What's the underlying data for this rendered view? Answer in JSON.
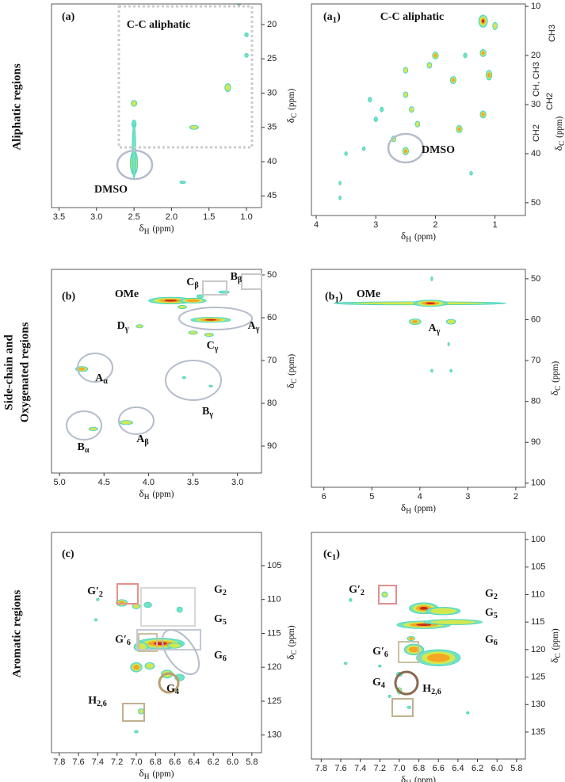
{
  "row_labels": [
    {
      "lines": [
        "Aliphatic regions"
      ]
    },
    {
      "lines": [
        "Side-chain and",
        "Oxygenated regions"
      ]
    },
    {
      "lines": [
        "Aromatic regions"
      ]
    }
  ],
  "levels_colors": [
    "#6fe3c6",
    "#d4e84e",
    "#f5a623",
    "#c62a1c"
  ],
  "chart_data": [
    {
      "type": "contour",
      "panel": {
        "text": "(a)"
      },
      "xlabel": {
        "symbol": "δ",
        "sub": "H",
        "unit": "(ppm)"
      },
      "ylabel": {
        "symbol": "δ",
        "sub": "C",
        "unit": "(ppm)"
      },
      "annotations": [
        {
          "text": "C-C aliphatic"
        },
        {
          "text": "DMSO"
        }
      ],
      "xlim": [
        3.6,
        0.8
      ],
      "ylim": [
        17,
        46.7
      ],
      "xticks": [
        3.5,
        {
          "value": 3.0,
          "label": "3.0"
        },
        2.5,
        {
          "value": 2.0,
          "label": "2.0"
        },
        1.5,
        {
          "value": 1.0,
          "label": "1.0"
        }
      ],
      "yticks": [
        20,
        25,
        30,
        35,
        40,
        45
      ],
      "peaks": {
        "x": [
          2.5,
          2.5,
          2.5,
          2.5,
          1.7,
          1.25,
          1.1,
          1.0,
          1.0,
          1.85
        ],
        "y": [
          31.5,
          34.5,
          40.2,
          38.5,
          35,
          29.2,
          16.8,
          21.5,
          24.5,
          43
        ],
        "w": [
          0.08,
          0.06,
          0.1,
          0.05,
          0.12,
          0.08,
          0.06,
          0.05,
          0.05,
          0.08
        ],
        "h": [
          0.9,
          1.2,
          3.5,
          8,
          0.6,
          1.2,
          0.8,
          0.6,
          0.6,
          0.4
        ],
        "level": [
          2,
          1,
          4,
          1,
          2,
          2,
          1,
          1,
          1,
          1
        ]
      }
    },
    {
      "type": "contour",
      "panel": {
        "text": "(a",
        "sub": "1",
        "after": ")"
      },
      "xlabel": {
        "symbol": "δ",
        "sub": "H",
        "unit": "(ppm)"
      },
      "ylabel": {
        "symbol": "δ",
        "sub": "C",
        "unit": "(ppm)"
      },
      "annotations": [
        {
          "text": "C-C aliphatic"
        },
        {
          "text": "DMSO"
        }
      ],
      "side_labels": [
        "CH3",
        "CH, CH3",
        "CH2",
        "CH2"
      ],
      "xlim": [
        4.08,
        0.49
      ],
      "ylim": [
        9.5,
        52.6
      ],
      "xticks": [
        4,
        3,
        2,
        1
      ],
      "yticks": [
        10,
        20,
        30,
        40,
        50
      ],
      "peaks": {
        "x": [
          1.2,
          1.2,
          1.1,
          1.0,
          2.0,
          2.1,
          1.5,
          2.5,
          1.7,
          2.5,
          2.4,
          1.2,
          3.0,
          2.9,
          3.1,
          2.3,
          1.6,
          2.7,
          2.5,
          3.2,
          3.5,
          3.6,
          3.6,
          1.4
        ],
        "y": [
          13,
          19.5,
          24,
          14,
          20,
          22,
          20,
          23,
          25,
          28,
          31,
          32,
          33,
          31,
          29,
          34,
          35,
          37,
          39.5,
          39,
          40,
          46,
          49,
          44
        ],
        "w": [
          0.15,
          0.1,
          0.1,
          0.08,
          0.1,
          0.08,
          0.06,
          0.08,
          0.1,
          0.08,
          0.08,
          0.1,
          0.06,
          0.06,
          0.06,
          0.08,
          0.1,
          0.08,
          0.1,
          0.05,
          0.05,
          0.04,
          0.04,
          0.05
        ],
        "h": [
          2.5,
          1.5,
          2,
          1.5,
          1.5,
          1.2,
          1,
          1.2,
          1.5,
          1.2,
          1.2,
          1.5,
          1,
          1,
          1,
          1.2,
          1.5,
          1.2,
          1.6,
          0.8,
          0.8,
          0.8,
          0.8,
          0.8
        ],
        "level": [
          4,
          3,
          3,
          2,
          3,
          2,
          1,
          2,
          3,
          2,
          2,
          3,
          1,
          1,
          1,
          2,
          3,
          2,
          3,
          1,
          1,
          1,
          1,
          1
        ]
      }
    },
    {
      "type": "contour",
      "panel": {
        "text": "(b)"
      },
      "xlabel": {
        "symbol": "δ",
        "sub": "H",
        "unit": "(ppm)"
      },
      "ylabel": {
        "symbol": "δ",
        "sub": "C",
        "unit": "(ppm)"
      },
      "annotations": [
        {
          "text": "OMe"
        },
        {
          "text": "C",
          "sub": "β"
        },
        {
          "text": "B",
          "sub": "β"
        },
        {
          "text": "D",
          "sub": "γ"
        },
        {
          "text": "A",
          "sub": "γ"
        },
        {
          "text": "C",
          "sub": "γ"
        },
        {
          "text": "A",
          "sub": "α"
        },
        {
          "text": "B",
          "sub": "γ"
        },
        {
          "text": "B",
          "sub": "α"
        },
        {
          "text": "A",
          "sub": "β"
        }
      ],
      "xlim": [
        5.09,
        2.73
      ],
      "ylim": [
        48.7,
        96.3
      ],
      "xticks": [
        {
          "value": 5.0,
          "label": "5.0"
        },
        4.5,
        {
          "value": 4.0,
          "label": "4.0"
        },
        3.5,
        {
          "value": 3.0,
          "label": "3.0"
        }
      ],
      "yticks": [
        50,
        60,
        70,
        80,
        90
      ],
      "peaks": {
        "x": [
          3.75,
          3.5,
          3.3,
          3.15,
          3.42,
          4.1,
          3.5,
          3.32,
          4.75,
          4.62,
          4.25,
          3.6,
          3.3,
          3.62
        ],
        "y": [
          56,
          56,
          60.5,
          54,
          55,
          62,
          63.5,
          64,
          72,
          86,
          84.5,
          74,
          76,
          57.5
        ],
        "w": [
          0.5,
          0.3,
          0.45,
          0.12,
          0.08,
          0.08,
          0.1,
          0.1,
          0.14,
          0.1,
          0.15,
          0.04,
          0.04,
          0.1
        ],
        "h": [
          1.6,
          1.2,
          1.2,
          0.6,
          0.8,
          0.8,
          0.8,
          0.8,
          1.2,
          0.8,
          1,
          0.5,
          0.5,
          0.8
        ],
        "level": [
          4,
          3,
          4,
          1,
          1,
          2,
          2,
          2,
          3,
          2,
          2,
          1,
          1,
          2
        ]
      }
    },
    {
      "type": "contour",
      "panel": {
        "text": "(b",
        "sub": "1",
        "after": ")"
      },
      "xlabel": {
        "symbol": "δ",
        "sub": "H",
        "unit": "(ppm)"
      },
      "ylabel": {
        "symbol": "δ",
        "sub": "C",
        "unit": "(ppm)"
      },
      "annotations": [
        {
          "text": "OMe"
        },
        {
          "text": "A",
          "sub": "γ"
        }
      ],
      "xlim": [
        6.26,
        1.8
      ],
      "ylim": [
        47.7,
        101
      ],
      "xticks": [
        6,
        5,
        4,
        3,
        2
      ],
      "yticks": [
        50,
        60,
        70,
        80,
        90,
        100
      ],
      "peaks": {
        "x": [
          4.0,
          3.78,
          4.1,
          3.35,
          3.75,
          3.4,
          3.75,
          3.35
        ],
        "y": [
          56,
          56,
          60.5,
          60.5,
          50,
          66,
          72.5,
          72.5
        ],
        "w": [
          3.6,
          0.7,
          0.25,
          0.2,
          0.04,
          0.04,
          0.05,
          0.05
        ],
        "h": [
          0.8,
          1.6,
          1.4,
          1.2,
          1,
          0.8,
          0.8,
          0.8
        ],
        "level": [
          2,
          4,
          3,
          2,
          1,
          1,
          1,
          1
        ]
      }
    },
    {
      "type": "contour",
      "panel": {
        "text": "(c)"
      },
      "xlabel": {
        "symbol": "δ",
        "sub": "H",
        "unit": "(ppm)"
      },
      "ylabel": {
        "symbol": "δ",
        "sub": "C",
        "unit": "(ppm)"
      },
      "annotations": [
        {
          "text": "G′",
          "sub": "2",
          "color": "#f0a070"
        },
        {
          "text": "G",
          "sub": "2"
        },
        {
          "text": "G",
          "sub": "5"
        },
        {
          "text": "G′",
          "sub": "6",
          "color": "#c2c88a"
        },
        {
          "text": "G",
          "sub": "6"
        },
        {
          "text": "G",
          "sub": "4",
          "color": "#e07b20"
        },
        {
          "text": "H",
          "sub": "2,6",
          "color": "#9b9070"
        }
      ],
      "xlim": [
        7.88,
        5.7
      ],
      "ylim": [
        100.1,
        132.6
      ],
      "xticks": [
        7.8,
        7.6,
        7.4,
        7.2,
        {
          "value": 7.0,
          "label": "7.0"
        },
        6.8,
        6.6,
        6.4,
        6.2,
        {
          "value": 6.0,
          "label": "6.0"
        },
        5.8
      ],
      "yticks": [
        105,
        110,
        115,
        120,
        125,
        130
      ],
      "peaks": {
        "x": [
          7.15,
          7.0,
          6.88,
          6.75,
          6.95,
          7.0,
          6.86,
          6.68,
          6.55,
          6.95,
          7.4,
          7.42,
          6.55,
          7.0,
          6.6
        ],
        "y": [
          110.5,
          111,
          110.8,
          116.5,
          117,
          120,
          119.8,
          121,
          121.5,
          126.5,
          110,
          113,
          111.5,
          129.5,
          116.8
        ],
        "w": [
          0.12,
          0.08,
          0.08,
          0.5,
          0.15,
          0.12,
          0.1,
          0.12,
          0.1,
          0.06,
          0.03,
          0.03,
          0.06,
          0.04,
          0.15
        ],
        "h": [
          1,
          0.8,
          0.8,
          1.6,
          1.4,
          1.4,
          1,
          1.2,
          1,
          0.8,
          0.4,
          0.4,
          0.8,
          0.4,
          0.8
        ],
        "level": [
          3,
          2,
          1,
          4,
          2,
          3,
          2,
          2,
          1,
          2,
          1,
          1,
          1,
          1,
          2
        ]
      }
    },
    {
      "type": "contour",
      "panel": {
        "text": "(c",
        "sub": "1",
        "after": ")"
      },
      "xlabel": {
        "symbol": "δ",
        "sub": "H",
        "unit": "(ppm)"
      },
      "ylabel": {
        "symbol": "δ",
        "sub": "C",
        "unit": "(ppm)"
      },
      "annotations": [
        {
          "text": "G′",
          "sub": "2",
          "color": "#e39a9a"
        },
        {
          "text": "G",
          "sub": "2"
        },
        {
          "text": "G",
          "sub": "5"
        },
        {
          "text": "G′",
          "sub": "6",
          "color": "#c2c2a0"
        },
        {
          "text": "G",
          "sub": "6"
        },
        {
          "text": "G",
          "sub": "4",
          "color": "#8b3a3a"
        },
        {
          "text": "H",
          "sub": "2,6",
          "color": "#a09070"
        }
      ],
      "xlim": [
        7.9,
        5.71
      ],
      "ylim": [
        98.7,
        139.9
      ],
      "xticks": [
        7.8,
        7.6,
        7.4,
        7.2,
        {
          "value": 7.0,
          "label": "7.0"
        },
        6.8,
        6.6,
        6.4,
        6.2,
        {
          "value": 6.0,
          "label": "6.0"
        },
        5.8
      ],
      "yticks": [
        100,
        105,
        110,
        115,
        120,
        125,
        130,
        135
      ],
      "peaks": {
        "x": [
          7.15,
          7.5,
          6.75,
          6.55,
          6.75,
          6.45,
          6.85,
          6.6,
          7.0,
          7.0,
          7.1,
          6.9,
          7.55,
          7.2,
          6.3,
          6.88
        ],
        "y": [
          110,
          111,
          112.5,
          113,
          115.5,
          115,
          120,
          121.5,
          124.5,
          127.5,
          128.5,
          130.5,
          122.5,
          123,
          131.5,
          118
        ],
        "w": [
          0.06,
          0.03,
          0.3,
          0.35,
          0.55,
          0.6,
          0.2,
          0.45,
          0.06,
          0.05,
          0.03,
          0.04,
          0.03,
          0.03,
          0.03,
          0.08
        ],
        "h": [
          1,
          0.6,
          2,
          1.4,
          1.4,
          1,
          2,
          3,
          0.8,
          1.2,
          0.5,
          0.5,
          0.4,
          0.4,
          0.4,
          0.8
        ],
        "level": [
          2,
          1,
          4,
          2,
          4,
          2,
          3,
          3,
          1,
          2,
          1,
          1,
          1,
          1,
          1,
          3
        ]
      }
    }
  ]
}
